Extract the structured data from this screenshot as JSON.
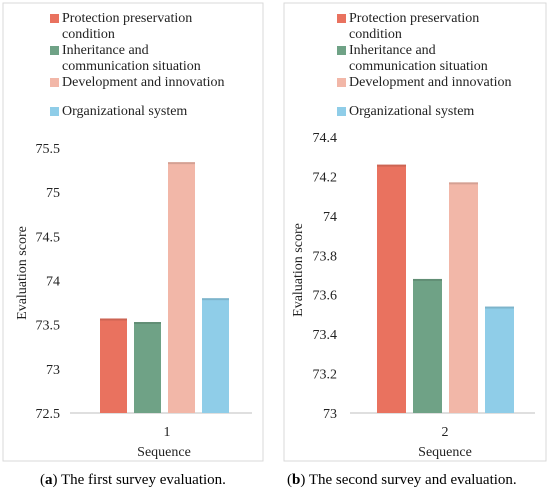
{
  "colors": {
    "protection": "#e9725f",
    "inheritance": "#6fa286",
    "development": "#f2b7a8",
    "organizational": "#8fcde8",
    "frame": "#d9d9d9",
    "axis": "#bfbfbf"
  },
  "legend_labels": [
    "Protection preservation condition",
    "Inheritance and communication situation",
    "Development and innovation",
    "Organizational system"
  ],
  "chart_data": [
    {
      "type": "bar",
      "categories": [
        "1"
      ],
      "series": [
        {
          "name": "Protection preservation condition",
          "values": [
            73.57
          ]
        },
        {
          "name": "Inheritance and communication situation",
          "values": [
            73.53
          ]
        },
        {
          "name": "Development and innovation",
          "values": [
            75.34
          ]
        },
        {
          "name": "Organizational system",
          "values": [
            73.8
          ]
        }
      ],
      "xlabel": "Sequence",
      "ylabel": "Evaluation score",
      "ylim": [
        72.5,
        75.5
      ],
      "yticks": [
        "72.5",
        "73",
        "73.5",
        "74",
        "74.5",
        "75",
        "75.5"
      ],
      "legend": "top",
      "grid": false
    },
    {
      "type": "bar",
      "categories": [
        "2"
      ],
      "series": [
        {
          "name": "Protection preservation condition",
          "values": [
            74.26
          ]
        },
        {
          "name": "Inheritance and communication situation",
          "values": [
            73.68
          ]
        },
        {
          "name": "Development and innovation",
          "values": [
            74.17
          ]
        },
        {
          "name": "Organizational system",
          "values": [
            73.54
          ]
        }
      ],
      "xlabel": "Sequence",
      "ylabel": "Evaluation score",
      "ylim": [
        73,
        74.4
      ],
      "yticks": [
        "73",
        "73.2",
        "73.4",
        "73.6",
        "73.8",
        "74",
        "74.2",
        "74.4"
      ],
      "legend": "top",
      "grid": false
    }
  ],
  "captions": [
    {
      "letter": "a",
      "text": " The first survey evaluation."
    },
    {
      "letter": "b",
      "text": " The second survey and evaluation."
    }
  ]
}
